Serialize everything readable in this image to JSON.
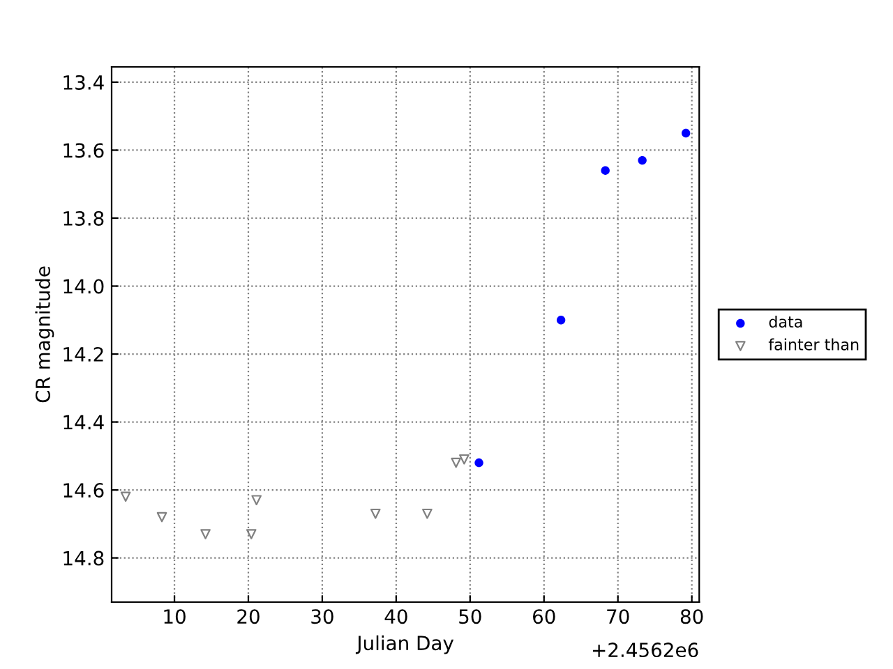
{
  "chart_data": {
    "type": "scatter",
    "xlabel": "Julian Day",
    "ylabel": "CR magnitude",
    "annotations": [
      "+2.4562e6"
    ],
    "xlim": [
      1.5,
      81
    ],
    "xticks": [
      10,
      20,
      30,
      40,
      50,
      60,
      70,
      80
    ],
    "ylim": [
      14.93,
      13.355
    ],
    "yticks": [
      13.4,
      13.6,
      13.8,
      {
        "value": 14.0,
        "label": "14.0"
      },
      14.2,
      14.4,
      14.6,
      14.8
    ],
    "grid": true,
    "legend": "right",
    "series": [
      {
        "name": "data",
        "color": "#0000ff",
        "marker": "circle",
        "x": [
          51.2,
          62.3,
          68.3,
          73.3,
          79.2
        ],
        "values": [
          14.52,
          14.1,
          13.66,
          13.63,
          13.55
        ]
      },
      {
        "name": "fainter than",
        "color": "#808080",
        "marker": "triangle",
        "x": [
          3.4,
          8.3,
          14.2,
          20.4,
          21.1,
          37.2,
          44.2,
          48.1,
          49.2
        ],
        "values": [
          14.62,
          14.68,
          14.73,
          14.73,
          14.63,
          14.67,
          14.67,
          14.52,
          14.51
        ]
      }
    ]
  }
}
